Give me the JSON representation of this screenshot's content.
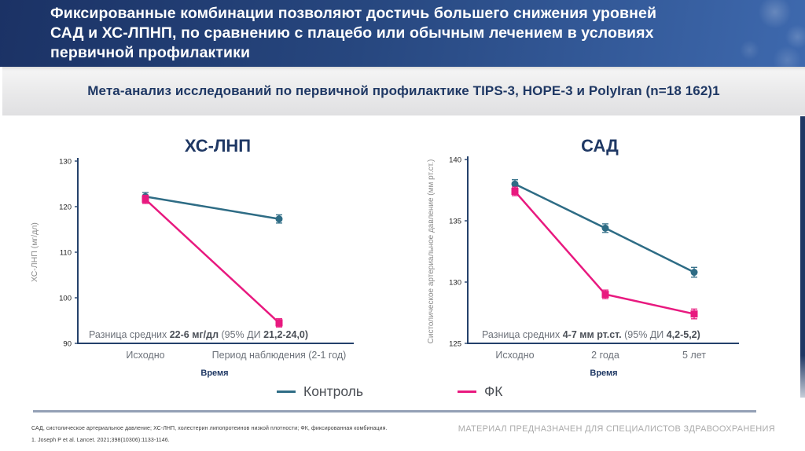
{
  "header": {
    "title_lines": [
      "Фиксированные комбинации позволяют достичь большего снижения уровней",
      "САД и ХС-ЛПНП, по сравнению с плацебо или обычным лечением в условиях",
      "первичной профилактики"
    ]
  },
  "subtitle": "Мета-анализ исследований по первичной профилактике TIPS-3, HOPE-3 и PolyIran (n=18 162)1",
  "colors": {
    "navy": "#1F3864",
    "teal": "#2E6C85",
    "pink": "#E8197F",
    "axis": "#24416B",
    "gray_text": "#6d727a"
  },
  "chart_data": [
    {
      "type": "line",
      "title": "ХС-ЛНП",
      "ylabel": "ХС-ЛНП (мг/дл)",
      "xlabel": "Время",
      "ylim": [
        90,
        130
      ],
      "yticks": [
        90,
        100,
        110,
        120,
        130
      ],
      "categories": [
        "Исходно",
        "Период наблюдения (2-1 год)"
      ],
      "grid": false,
      "legend_position": "bottom",
      "annotation": "Разница средних 22-6 мг/дл (95% ДИ 21,2-24,0)",
      "annotation_parts": [
        {
          "text": "Разница средних ",
          "bold": false
        },
        {
          "text": "22-6 мг/дл ",
          "bold": true
        },
        {
          "text": "(95% ДИ ",
          "bold": false
        },
        {
          "text": "21,2-24,0)",
          "bold": true
        }
      ],
      "series": [
        {
          "name": "Контроль",
          "color": "#2E6C85",
          "marker": "circle",
          "values": [
            122.2,
            117.3
          ],
          "err": [
            0.9,
            0.9
          ]
        },
        {
          "name": "ФК",
          "color": "#E8197F",
          "marker": "square",
          "values": [
            121.6,
            94.5
          ],
          "err": [
            0.9,
            0.9
          ]
        }
      ]
    },
    {
      "type": "line",
      "title": "САД",
      "ylabel": "Систолическое артериальное давление (мм рт.ст.)",
      "xlabel": "Время",
      "ylim": [
        125,
        140
      ],
      "yticks": [
        125,
        130,
        135,
        140
      ],
      "categories": [
        "Исходно",
        "2 года",
        "5 лет"
      ],
      "grid": false,
      "legend_position": "bottom",
      "annotation": "Разница средних 4-7 мм рт.ст. (95% ДИ 4,2-5,2)",
      "annotation_parts": [
        {
          "text": "Разница средних ",
          "bold": false
        },
        {
          "text": "4-7 мм рт.ст. ",
          "bold": true
        },
        {
          "text": "(95% ДИ ",
          "bold": false
        },
        {
          "text": "4,2-5,2)",
          "bold": true
        }
      ],
      "series": [
        {
          "name": "Контроль",
          "color": "#2E6C85",
          "marker": "circle",
          "values": [
            138.0,
            134.4,
            130.8
          ],
          "err": [
            0.35,
            0.35,
            0.4
          ]
        },
        {
          "name": "ФК",
          "color": "#E8197F",
          "marker": "square",
          "values": [
            137.4,
            129.0,
            127.4
          ],
          "err": [
            0.35,
            0.35,
            0.4
          ]
        }
      ]
    }
  ],
  "legend": {
    "items": [
      {
        "label": "Контроль",
        "color": "#2E6C85"
      },
      {
        "label": "ФК",
        "color": "#E8197F"
      }
    ]
  },
  "footer": {
    "abbreviations": "САД, систолическое артериальное давление; ХС-ЛНП, холестерин липопротеинов низкой плотности; ФК, фиксированная комбинация.",
    "reference": "1. Joseph P et al. Lancet. 2021;398(10306):1133-1146.",
    "disclaimer": "МАТЕРИАЛ ПРЕДНАЗНАЧЕН ДЛЯ СПЕЦИАЛИСТОВ ЗДРАВООХРАНЕНИЯ"
  }
}
